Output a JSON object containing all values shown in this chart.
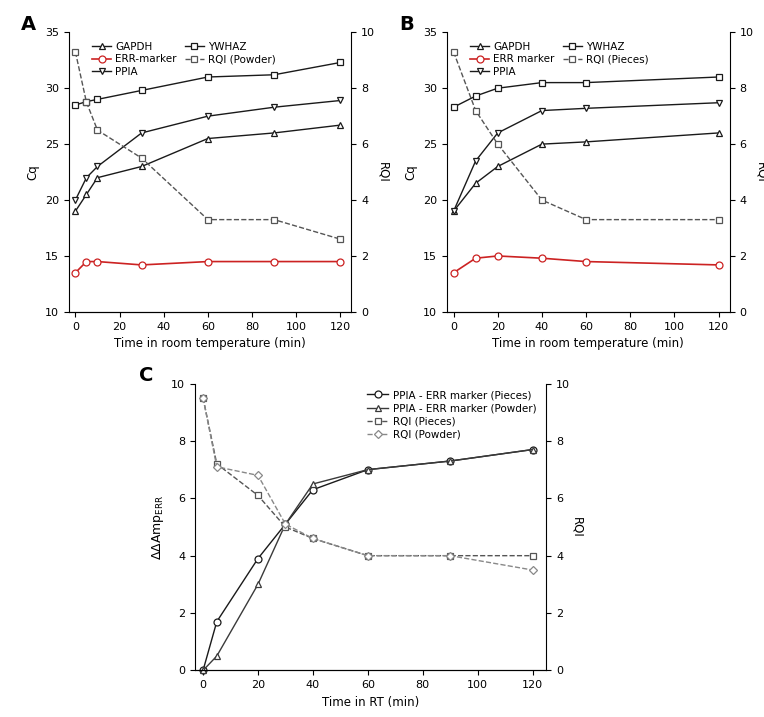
{
  "panel_A": {
    "title": "A",
    "xlabel": "Time in room temperature (min)",
    "ylabel_left": "Cq",
    "ylabel_right": "RQI",
    "ylim_left": [
      10,
      35
    ],
    "ylim_right": [
      0,
      10
    ],
    "yticks_left": [
      10,
      15,
      20,
      25,
      30,
      35
    ],
    "yticks_right": [
      0,
      2,
      4,
      6,
      8,
      10
    ],
    "xticks": [
      0,
      20,
      40,
      60,
      80,
      100,
      120
    ],
    "x": [
      0,
      5,
      10,
      30,
      60,
      90,
      120
    ],
    "GAPDH": [
      19.0,
      20.5,
      22.0,
      23.0,
      25.5,
      26.0,
      26.7
    ],
    "PPIA": [
      20.0,
      22.0,
      23.0,
      26.0,
      27.5,
      28.3,
      28.9
    ],
    "ERR_marker": [
      13.5,
      14.5,
      14.5,
      14.2,
      14.5,
      14.5,
      14.5
    ],
    "YWHAZ": [
      28.5,
      28.8,
      29.0,
      29.8,
      31.0,
      31.2,
      32.3
    ],
    "RQI_Powder_x": [
      0,
      5,
      10,
      30,
      60,
      90,
      120
    ],
    "RQI_Powder": [
      9.3,
      7.5,
      6.5,
      5.5,
      3.3,
      3.3,
      2.6
    ]
  },
  "panel_B": {
    "title": "B",
    "xlabel": "Time in room temperature (min)",
    "ylabel_left": "Cq",
    "ylabel_right": "RQI",
    "ylim_left": [
      10,
      35
    ],
    "ylim_right": [
      0,
      10
    ],
    "yticks_left": [
      10,
      15,
      20,
      25,
      30,
      35
    ],
    "yticks_right": [
      0,
      2,
      4,
      6,
      8,
      10
    ],
    "xticks": [
      0,
      20,
      40,
      60,
      80,
      100,
      120
    ],
    "x": [
      0,
      10,
      20,
      40,
      60,
      120
    ],
    "GAPDH": [
      19.0,
      21.5,
      23.0,
      25.0,
      25.2,
      26.0
    ],
    "PPIA": [
      19.0,
      23.5,
      26.0,
      28.0,
      28.2,
      28.7
    ],
    "ERR_marker": [
      13.5,
      14.8,
      15.0,
      14.8,
      14.5,
      14.2
    ],
    "YWHAZ": [
      28.3,
      29.3,
      30.0,
      30.5,
      30.5,
      31.0
    ],
    "RQI_Pieces_x": [
      0,
      10,
      20,
      40,
      60,
      120
    ],
    "RQI_Pieces": [
      9.3,
      7.2,
      6.0,
      4.0,
      3.3,
      3.3
    ]
  },
  "panel_C": {
    "title": "C",
    "xlabel": "Time in RT (min)",
    "ylabel_right": "RQI",
    "ylim_left": [
      0,
      10
    ],
    "ylim_right": [
      0,
      10
    ],
    "yticks_left": [
      0,
      2,
      4,
      6,
      8,
      10
    ],
    "yticks_right": [
      0,
      2,
      4,
      6,
      8,
      10
    ],
    "xticks": [
      0,
      20,
      40,
      60,
      80,
      100,
      120
    ],
    "x": [
      0,
      5,
      20,
      30,
      40,
      60,
      90,
      120
    ],
    "PPIA_ERR_Pieces": [
      0.0,
      1.7,
      3.9,
      5.1,
      6.3,
      7.0,
      7.3,
      7.7
    ],
    "PPIA_ERR_Powder": [
      0.0,
      0.5,
      3.0,
      5.1,
      6.5,
      7.0,
      7.3,
      7.7
    ],
    "RQI_Pieces_x": [
      0,
      5,
      20,
      30,
      40,
      60,
      90,
      120
    ],
    "RQI_Pieces": [
      9.5,
      7.2,
      6.1,
      5.0,
      4.6,
      4.0,
      4.0,
      4.0
    ],
    "RQI_Powder_x": [
      0,
      5,
      20,
      30,
      40,
      60,
      90,
      120
    ],
    "RQI_Powder": [
      9.5,
      7.1,
      6.8,
      5.1,
      4.6,
      4.0,
      4.0,
      3.5
    ]
  },
  "colors": {
    "black": "#1a1a1a",
    "dark_gray": "#3a3a3a",
    "red": "#cc2222",
    "rqi_dark": "#555555",
    "rqi_light": "#888888"
  }
}
